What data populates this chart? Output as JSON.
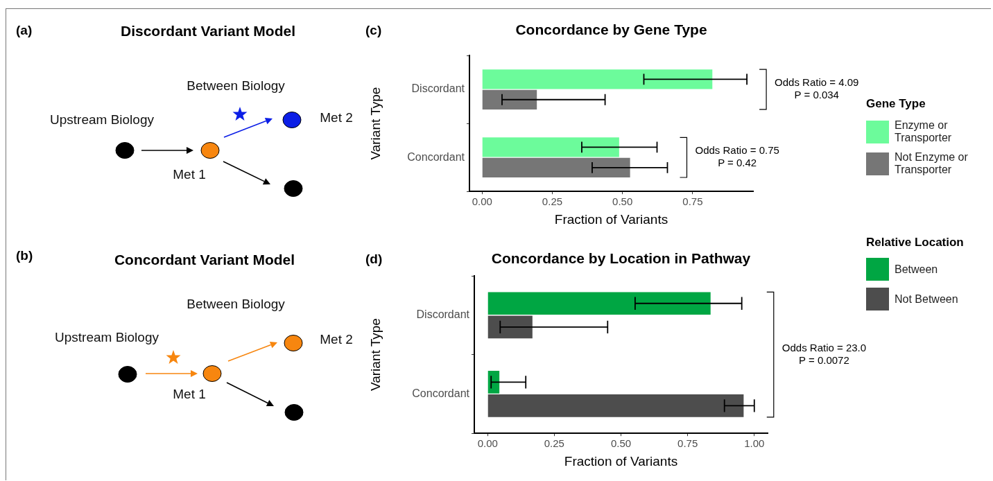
{
  "chart_data": [
    {
      "type": "other",
      "title": "Discordant Variant Model",
      "annotations": [
        "(a)",
        "Between Biology",
        "Upstream Biology",
        "Met 1",
        "Met 2"
      ]
    },
    {
      "type": "other",
      "title": "Concordant Variant Model",
      "annotations": [
        "(b)",
        "Between Biology",
        "Upstream Biology",
        "Met 1",
        "Met 2"
      ]
    },
    {
      "type": "bar",
      "orientation": "horizontal",
      "title": "Concordance by Gene Type",
      "xlabel": "Fraction of Variants",
      "ylabel": "Variant Type",
      "categories": [
        "Discordant",
        "Concordant"
      ],
      "series": [
        {
          "name": "Enzyme or Transporter",
          "color": "#6cfb9b",
          "values": [
            0.82,
            0.488
          ],
          "errors": [
            [
              0.576,
              0.943
            ],
            [
              0.355,
              0.623
            ]
          ]
        },
        {
          "name": "Not Enzyme or Transporter",
          "color": "#767676",
          "values": [
            0.195,
            0.527
          ],
          "errors": [
            [
              0.071,
              0.438
            ],
            [
              0.392,
              0.66
            ]
          ]
        }
      ],
      "xlim": [
        -0.045,
        0.965
      ],
      "xticks": [
        {
          "value": 0,
          "label": "0.00"
        },
        {
          "value": 0.25,
          "label": "0.25"
        },
        {
          "value": 0.5,
          "label": "0.50"
        },
        {
          "value": 0.75,
          "label": "0.75"
        }
      ],
      "legend": "right",
      "legend_title": "Gene Type",
      "annotations": [
        "(c)",
        "Odds Ratio = 4.09\nP = 0.034",
        "Odds Ratio = 0.75\nP = 0.42"
      ]
    },
    {
      "type": "bar",
      "orientation": "horizontal",
      "title": "Concordance by Location in Pathway",
      "xlabel": "Fraction of Variants",
      "ylabel": "Variant Type",
      "categories": [
        "Discordant",
        "Concordant"
      ],
      "series": [
        {
          "name": "Between",
          "color": "#00a643",
          "values": [
            0.836,
            0.044
          ],
          "errors": [
            [
              0.553,
              0.953
            ],
            [
              0.013,
              0.143
            ]
          ]
        },
        {
          "name": "Not Between",
          "color": "#4d4d4d",
          "values": [
            0.168,
            0.96
          ],
          "errors": [
            [
              0.047,
              0.45
            ],
            [
              0.888,
              1.0
            ]
          ]
        }
      ],
      "xlim": [
        -0.05,
        1.05
      ],
      "xticks": [
        {
          "value": 0,
          "label": "0.00"
        },
        {
          "value": 0.25,
          "label": "0.25"
        },
        {
          "value": 0.5,
          "label": "0.50"
        },
        {
          "value": 0.75,
          "label": "0.75"
        },
        {
          "value": 1,
          "label": "1.00"
        }
      ],
      "legend": "right",
      "legend_title": "Relative Location",
      "annotations": [
        "(d)",
        "Odds Ratio = 23.0\nP = 0.0072"
      ]
    }
  ]
}
